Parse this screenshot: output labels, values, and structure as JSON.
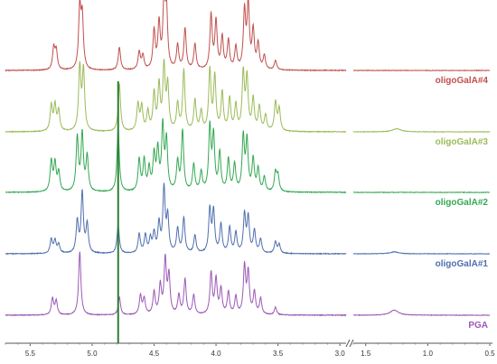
{
  "chart_data": {
    "type": "line",
    "title": "",
    "xlabel": "",
    "ylabel": "",
    "x_axis": {
      "reversed": true,
      "broken": true,
      "segments": [
        {
          "from": 5.7,
          "to": 2.95,
          "ticks": [
            "5.5",
            "5.0",
            "4.5",
            "4.0",
            "3.5",
            "3.0"
          ]
        },
        {
          "from": 1.6,
          "to": 0.5,
          "ticks": [
            "1.5",
            "1.0",
            "0.5"
          ]
        }
      ]
    },
    "ticks": {
      "left": [
        "5.5",
        "5.0",
        "4.5",
        "4.0",
        "3.5",
        "3.0"
      ],
      "right": [
        "1.5",
        "1.0",
        "0.5"
      ]
    },
    "vertical_marker": {
      "x": 4.79,
      "color": "#2e7d32"
    },
    "series": [
      {
        "name": "oligoGalA#4",
        "color": "#c0504d",
        "peaks": [
          [
            5.31,
            0.34
          ],
          [
            5.29,
            0.3
          ],
          [
            5.1,
            0.95
          ],
          [
            5.08,
            0.8
          ],
          [
            4.78,
            0.36
          ],
          [
            4.62,
            0.28
          ],
          [
            4.59,
            0.22
          ],
          [
            4.5,
            0.6
          ],
          [
            4.46,
            0.7
          ],
          [
            4.42,
            1.0
          ],
          [
            4.4,
            0.9
          ],
          [
            4.31,
            0.38
          ],
          [
            4.25,
            0.65
          ],
          [
            4.17,
            0.4
          ],
          [
            4.04,
            0.85
          ],
          [
            4.0,
            0.75
          ],
          [
            3.95,
            0.5
          ],
          [
            3.9,
            0.45
          ],
          [
            3.84,
            0.35
          ],
          [
            3.77,
            0.9
          ],
          [
            3.74,
            1.0
          ],
          [
            3.7,
            0.6
          ],
          [
            3.66,
            0.4
          ],
          [
            3.61,
            0.22
          ],
          [
            3.52,
            0.15
          ]
        ],
        "wide_peaks": []
      },
      {
        "name": "oligoGalA#3",
        "color": "#9bbb59",
        "peaks": [
          [
            5.33,
            0.4
          ],
          [
            5.3,
            0.4
          ],
          [
            5.27,
            0.32
          ],
          [
            5.1,
            1.0
          ],
          [
            5.07,
            0.95
          ],
          [
            4.78,
            0.75
          ],
          [
            4.63,
            0.42
          ],
          [
            4.6,
            0.38
          ],
          [
            4.55,
            0.3
          ],
          [
            4.5,
            0.58
          ],
          [
            4.46,
            0.7
          ],
          [
            4.42,
            1.0
          ],
          [
            4.39,
            0.7
          ],
          [
            4.31,
            0.42
          ],
          [
            4.26,
            0.95
          ],
          [
            4.17,
            0.48
          ],
          [
            4.12,
            0.3
          ],
          [
            4.05,
            0.95
          ],
          [
            4.01,
            0.85
          ],
          [
            3.95,
            0.6
          ],
          [
            3.89,
            0.5
          ],
          [
            3.84,
            0.4
          ],
          [
            3.78,
            0.9
          ],
          [
            3.75,
            0.82
          ],
          [
            3.7,
            0.5
          ],
          [
            3.65,
            0.38
          ],
          [
            3.6,
            0.25
          ],
          [
            3.52,
            0.45
          ],
          [
            3.49,
            0.35
          ]
        ],
        "wide_peaks": [
          [
            1.25,
            0.05
          ]
        ]
      },
      {
        "name": "oligoGalA#2",
        "color": "#33a852",
        "peaks": [
          [
            5.33,
            0.48
          ],
          [
            5.3,
            0.44
          ],
          [
            5.27,
            0.3
          ],
          [
            5.12,
            0.85
          ],
          [
            5.08,
            0.9
          ],
          [
            5.04,
            0.55
          ],
          [
            4.79,
            1.0
          ],
          [
            4.62,
            0.5
          ],
          [
            4.58,
            0.48
          ],
          [
            4.54,
            0.35
          ],
          [
            4.5,
            0.55
          ],
          [
            4.47,
            0.62
          ],
          [
            4.43,
            1.0
          ],
          [
            4.4,
            0.78
          ],
          [
            4.31,
            0.45
          ],
          [
            4.27,
            0.95
          ],
          [
            4.18,
            0.42
          ],
          [
            4.12,
            0.3
          ],
          [
            4.05,
            1.0
          ],
          [
            4.02,
            0.85
          ],
          [
            3.97,
            0.6
          ],
          [
            3.9,
            0.5
          ],
          [
            3.85,
            0.42
          ],
          [
            3.78,
            0.85
          ],
          [
            3.75,
            0.78
          ],
          [
            3.7,
            0.5
          ],
          [
            3.66,
            0.35
          ],
          [
            3.61,
            0.22
          ],
          [
            3.52,
            0.3
          ],
          [
            3.5,
            0.25
          ]
        ],
        "wide_peaks": []
      },
      {
        "name": "oligoGalA#1",
        "color": "#4f6fae",
        "peaks": [
          [
            5.33,
            0.22
          ],
          [
            5.3,
            0.2
          ],
          [
            5.27,
            0.14
          ],
          [
            5.12,
            0.5
          ],
          [
            5.08,
            0.95
          ],
          [
            5.04,
            0.45
          ],
          [
            4.79,
            0.45
          ],
          [
            4.62,
            0.3
          ],
          [
            4.57,
            0.28
          ],
          [
            4.53,
            0.22
          ],
          [
            4.5,
            0.3
          ],
          [
            4.46,
            0.45
          ],
          [
            4.42,
            1.0
          ],
          [
            4.39,
            0.55
          ],
          [
            4.31,
            0.38
          ],
          [
            4.26,
            0.55
          ],
          [
            4.17,
            0.28
          ],
          [
            4.05,
            0.68
          ],
          [
            4.02,
            0.65
          ],
          [
            3.96,
            0.45
          ],
          [
            3.89,
            0.4
          ],
          [
            3.84,
            0.32
          ],
          [
            3.77,
            0.6
          ],
          [
            3.74,
            0.55
          ],
          [
            3.69,
            0.35
          ],
          [
            3.64,
            0.22
          ],
          [
            3.52,
            0.18
          ],
          [
            3.49,
            0.14
          ]
        ],
        "wide_peaks": [
          [
            1.27,
            0.03
          ]
        ]
      },
      {
        "name": "PGA",
        "color": "#9b59b6",
        "peaks": [
          [
            5.32,
            0.26
          ],
          [
            5.29,
            0.22
          ],
          [
            5.1,
            1.0
          ],
          [
            4.78,
            0.28
          ],
          [
            4.61,
            0.3
          ],
          [
            4.58,
            0.25
          ],
          [
            4.5,
            0.35
          ],
          [
            4.45,
            0.45
          ],
          [
            4.41,
            0.85
          ],
          [
            4.38,
            0.6
          ],
          [
            4.3,
            0.3
          ],
          [
            4.25,
            0.55
          ],
          [
            4.18,
            0.3
          ],
          [
            4.04,
            0.65
          ],
          [
            4.0,
            0.55
          ],
          [
            3.96,
            0.4
          ],
          [
            3.9,
            0.35
          ],
          [
            3.84,
            0.28
          ],
          [
            3.77,
            0.75
          ],
          [
            3.74,
            0.65
          ],
          [
            3.69,
            0.35
          ],
          [
            3.64,
            0.25
          ],
          [
            3.52,
            0.12
          ]
        ],
        "wide_peaks": [
          [
            1.27,
            0.08
          ]
        ]
      }
    ]
  }
}
